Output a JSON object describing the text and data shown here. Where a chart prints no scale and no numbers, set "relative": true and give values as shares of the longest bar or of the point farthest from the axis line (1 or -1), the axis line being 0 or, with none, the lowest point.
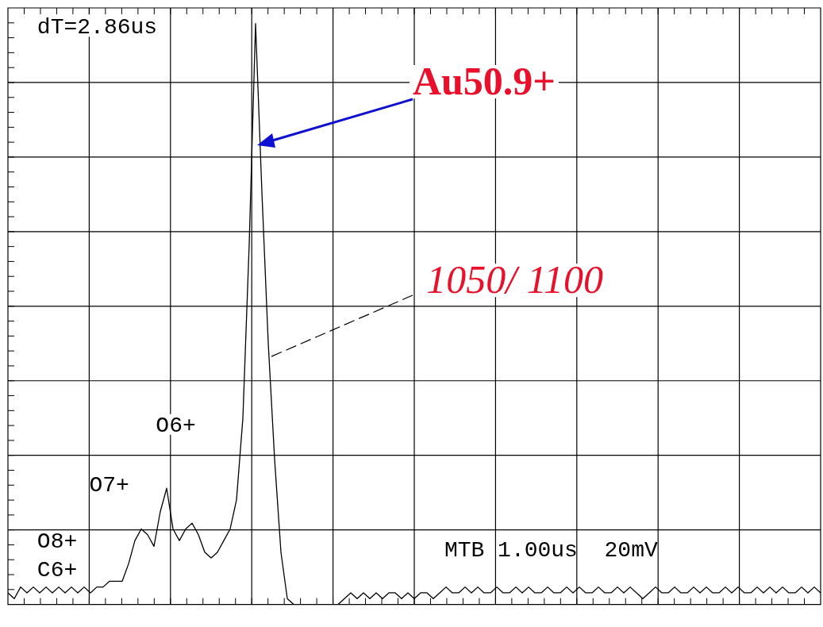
{
  "chart_data": {
    "type": "line",
    "relative": true,
    "grid": true,
    "legend": false,
    "marker": "none",
    "line_style": "solid",
    "categories": [
      null,
      null,
      null,
      null,
      null,
      null,
      null,
      null,
      null,
      null,
      null,
      null,
      null,
      null,
      null,
      null,
      null,
      null,
      null,
      null,
      null,
      null,
      null,
      null,
      null,
      null,
      null,
      null,
      null,
      null,
      null,
      null,
      null,
      null,
      null,
      null,
      null,
      null,
      null,
      null,
      null,
      null,
      null,
      null,
      null,
      null,
      null,
      null,
      null,
      null,
      null,
      null,
      null,
      null,
      null,
      null,
      null,
      null,
      null,
      null,
      null,
      null,
      null,
      null,
      null,
      null,
      null,
      null,
      null,
      null,
      null,
      null,
      null,
      null,
      null,
      null,
      null,
      null,
      null,
      null,
      null,
      null,
      null,
      null,
      null,
      null,
      null,
      null,
      null,
      null,
      null,
      null,
      null,
      null,
      null,
      null,
      null,
      null,
      null,
      null,
      null,
      null,
      null,
      null,
      null,
      null,
      null,
      null,
      null,
      null,
      null,
      null,
      null,
      null,
      null,
      null,
      null,
      null,
      null,
      null,
      null,
      null,
      null,
      null,
      null,
      null,
      null,
      null,
      null
    ],
    "series": [
      {
        "color": "#000000",
        "values": [
          0.02,
          0.01,
          0.03,
          0.02,
          0.03,
          0.02,
          0.03,
          0.02,
          0.03,
          0.02,
          0.03,
          0.02,
          0.03,
          0.02,
          0.03,
          0.03,
          0.04,
          0.04,
          0.04,
          0.07,
          0.11,
          0.13,
          0.12,
          0.1,
          0.16,
          0.2,
          0.13,
          0.11,
          0.13,
          0.14,
          0.12,
          0.09,
          0.08,
          0.09,
          0.11,
          0.13,
          0.18,
          0.32,
          0.62,
          1.0,
          0.71,
          0.45,
          0.25,
          0.09,
          0.01,
          0,
          0,
          0,
          0,
          0,
          0,
          0,
          0,
          0.01,
          0.02,
          0.01,
          0.02,
          0.01,
          0.02,
          0.01,
          0.02,
          0.02,
          0.01,
          0.02,
          0.01,
          0.02,
          0.02,
          0.01,
          0.02,
          0.03,
          0.02,
          0.02,
          0.03,
          0.02,
          0.03,
          0.02,
          0.02,
          0.03,
          0.02,
          0.02,
          0.03,
          0.02,
          0.03,
          0.02,
          0.02,
          0.03,
          0.02,
          0.02,
          0.03,
          0.02,
          0.03,
          0.02,
          0.02,
          0.03,
          0.02,
          0.02,
          0.03,
          0.02,
          0.03,
          0.02,
          0.01,
          0.02,
          0.03,
          0.02,
          0.02,
          0.03,
          0.02,
          0.02,
          0.03,
          0.02,
          0.03,
          0.02,
          0.02,
          0.03,
          0.02,
          0.03,
          0.02,
          0.02,
          0.03,
          0.02,
          0.03,
          0.02,
          0.03,
          0.02,
          0.02,
          0.03,
          0.02,
          0.03,
          0.02
        ]
      }
    ],
    "annotations": [
      "dT=2.86us",
      "Au50.9+",
      "1050/ 1100",
      "O6+",
      "O7+",
      "O8+",
      "C6+",
      "MTB 1.00us  20mV"
    ]
  }
}
